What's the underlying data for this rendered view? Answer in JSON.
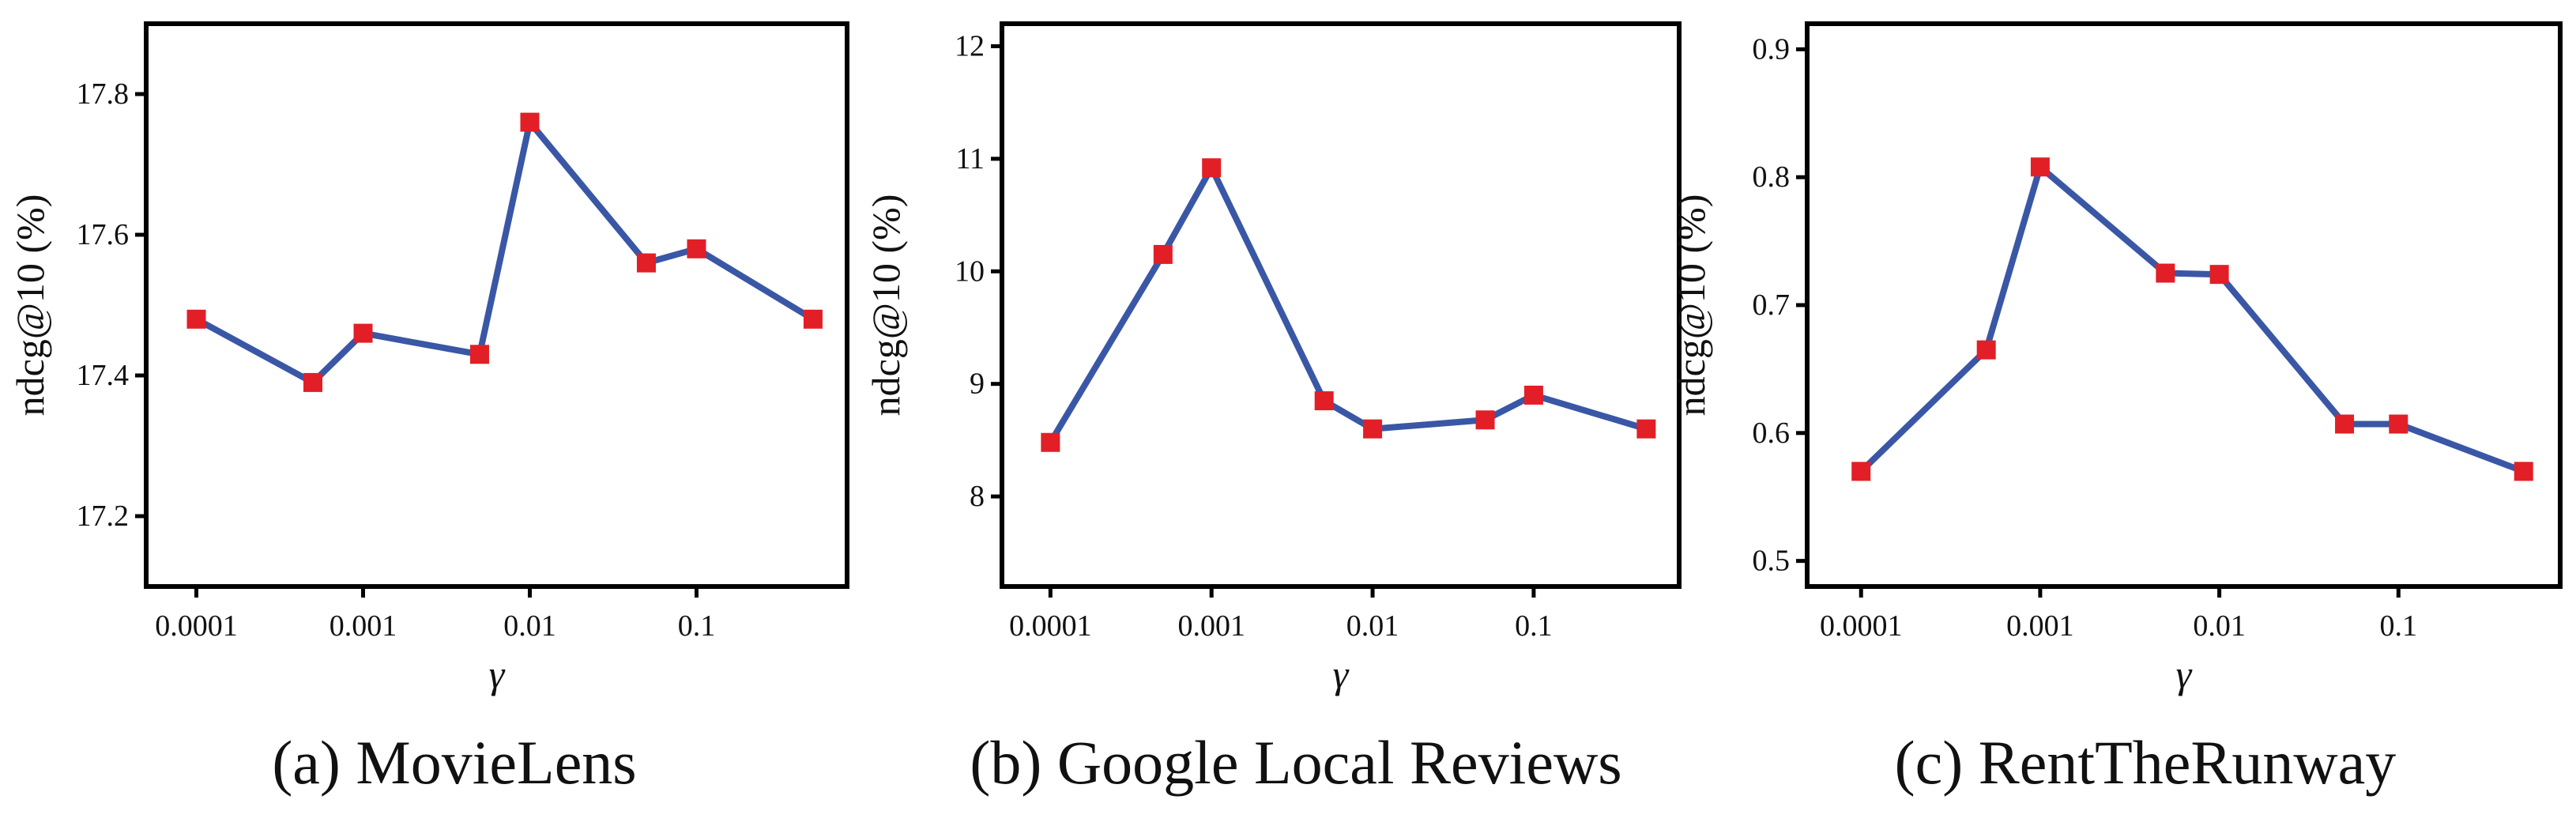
{
  "chart_data": [
    {
      "type": "line",
      "caption": "(a) MovieLens",
      "xlabel": "γ",
      "ylabel": "ndcg@10 (%)",
      "x_scale": "log",
      "x_ticks": [
        0.0001,
        0.001,
        0.01,
        0.1
      ],
      "x_tick_labels": [
        "0.0001",
        "0.001",
        "0.01",
        "0.1"
      ],
      "y_ticks": [
        17.2,
        17.4,
        17.6,
        17.8
      ],
      "y_tick_labels": [
        "17.2",
        "17.4",
        "17.6",
        "17.8"
      ],
      "ylim": [
        17.1,
        17.9
      ],
      "xlim": [
        5e-05,
        0.8
      ],
      "x": [
        0.0001,
        0.0005,
        0.001,
        0.005,
        0.01,
        0.05,
        0.1,
        0.5
      ],
      "values": [
        17.48,
        17.39,
        17.46,
        17.43,
        17.76,
        17.56,
        17.58,
        17.48
      ],
      "line_color": "#3a57a6",
      "marker_color": "#e21f26"
    },
    {
      "type": "line",
      "caption": "(b) Google Local Reviews",
      "xlabel": "γ",
      "ylabel": "ndcg@10 (%)",
      "x_scale": "log",
      "x_ticks": [
        0.0001,
        0.001,
        0.01,
        0.1
      ],
      "x_tick_labels": [
        "0.0001",
        "0.001",
        "0.01",
        "0.1"
      ],
      "y_ticks": [
        8,
        9,
        10,
        11,
        12
      ],
      "y_tick_labels": [
        "8",
        "9",
        "10",
        "11",
        "12"
      ],
      "ylim": [
        7.2,
        12.2
      ],
      "xlim": [
        5e-05,
        0.8
      ],
      "x": [
        0.0001,
        0.0005,
        0.001,
        0.005,
        0.01,
        0.05,
        0.1,
        0.5
      ],
      "values": [
        8.48,
        10.15,
        10.92,
        8.85,
        8.6,
        8.68,
        8.9,
        8.6
      ],
      "line_color": "#3a57a6",
      "marker_color": "#e21f26"
    },
    {
      "type": "line",
      "caption": "(c) RentTheRunway",
      "xlabel": "γ",
      "ylabel": "ndcg@10 (%)",
      "x_scale": "log",
      "x_ticks": [
        0.0001,
        0.001,
        0.01,
        0.1
      ],
      "x_tick_labels": [
        "0.0001",
        "0.001",
        "0.01",
        "0.1"
      ],
      "y_ticks": [
        0.5,
        0.6,
        0.7,
        0.8,
        0.9
      ],
      "y_tick_labels": [
        "0.5",
        "0.6",
        "0.7",
        "0.8",
        "0.9"
      ],
      "ylim": [
        0.48,
        0.92
      ],
      "xlim": [
        5e-05,
        0.8
      ],
      "x": [
        0.0001,
        0.0005,
        0.001,
        0.005,
        0.01,
        0.05,
        0.1,
        0.5
      ],
      "values": [
        0.57,
        0.665,
        0.808,
        0.725,
        0.724,
        0.607,
        0.607,
        0.57
      ],
      "line_color": "#3a57a6",
      "marker_color": "#e21f26"
    }
  ]
}
